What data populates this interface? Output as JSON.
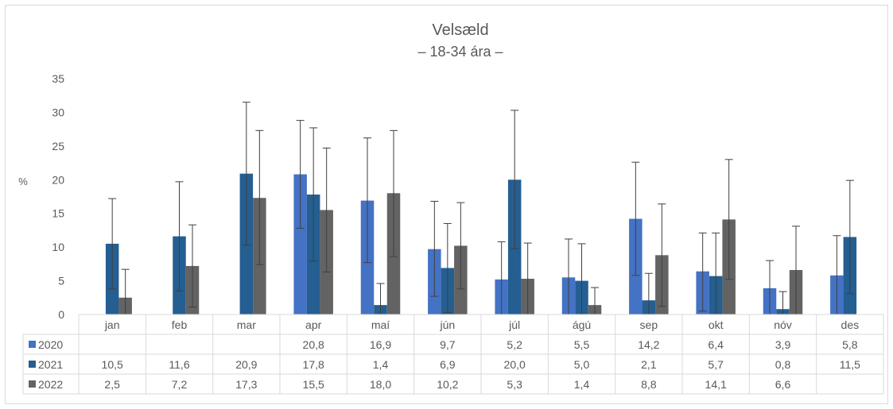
{
  "chart_data": {
    "type": "bar",
    "title": "Velsæld",
    "subtitle": "– 18-34 ára –",
    "ylabel": "%",
    "ylim": [
      0,
      35
    ],
    "yticks": [
      0,
      5,
      10,
      15,
      20,
      25,
      30,
      35
    ],
    "categories": [
      "jan",
      "feb",
      "mar",
      "apr",
      "maí",
      "jún",
      "júl",
      "ágú",
      "sep",
      "okt",
      "nóv",
      "des"
    ],
    "series": [
      {
        "name": "2020",
        "color": "#4472c4",
        "labels": [
          "",
          "",
          "",
          "20,8",
          "16,9",
          "9,7",
          "5,2",
          "5,5",
          "14,2",
          "6,4",
          "3,9",
          "5,8"
        ],
        "values": [
          null,
          null,
          null,
          20.8,
          16.9,
          9.7,
          5.2,
          5.5,
          14.2,
          6.4,
          3.9,
          5.8
        ],
        "err_low": [
          null,
          null,
          null,
          12.8,
          7.7,
          2.7,
          0.0,
          0.0,
          5.8,
          0.5,
          0.0,
          0.0
        ],
        "err_high": [
          null,
          null,
          null,
          28.8,
          26.2,
          16.8,
          10.8,
          11.2,
          22.6,
          12.1,
          8.0,
          11.7
        ]
      },
      {
        "name": "2021",
        "color": "#255e91",
        "labels": [
          "10,5",
          "11,6",
          "20,9",
          "17,8",
          "1,4",
          "6,9",
          "20,0",
          "5,0",
          "2,1",
          "5,7",
          "0,8",
          "11,5"
        ],
        "values": [
          10.5,
          11.6,
          20.9,
          17.8,
          1.4,
          6.9,
          20.0,
          5.0,
          2.1,
          5.7,
          0.8,
          11.5
        ],
        "err_low": [
          3.8,
          3.5,
          10.3,
          7.9,
          0.0,
          0.3,
          9.8,
          0.0,
          0.0,
          0.0,
          0.0,
          3.1
        ],
        "err_high": [
          17.2,
          19.7,
          31.5,
          27.7,
          4.6,
          13.5,
          30.3,
          10.5,
          6.1,
          12.1,
          3.4,
          19.9
        ]
      },
      {
        "name": "2022",
        "color": "#636363",
        "labels": [
          "2,5",
          "7,2",
          "17,3",
          "15,5",
          "18,0",
          "10,2",
          "5,3",
          "1,4",
          "8,8",
          "14,1",
          "6,6",
          ""
        ],
        "values": [
          2.5,
          7.2,
          17.3,
          15.5,
          18.0,
          10.2,
          5.3,
          1.4,
          8.8,
          14.1,
          6.6,
          null
        ],
        "err_low": [
          0.0,
          1.1,
          7.4,
          6.3,
          8.6,
          3.8,
          0.0,
          0.0,
          1.2,
          5.2,
          0.0,
          null
        ],
        "err_high": [
          6.7,
          13.3,
          27.3,
          24.7,
          27.3,
          16.6,
          10.6,
          4.0,
          16.4,
          23.0,
          13.1,
          null
        ]
      }
    ],
    "legend": "data-table"
  }
}
